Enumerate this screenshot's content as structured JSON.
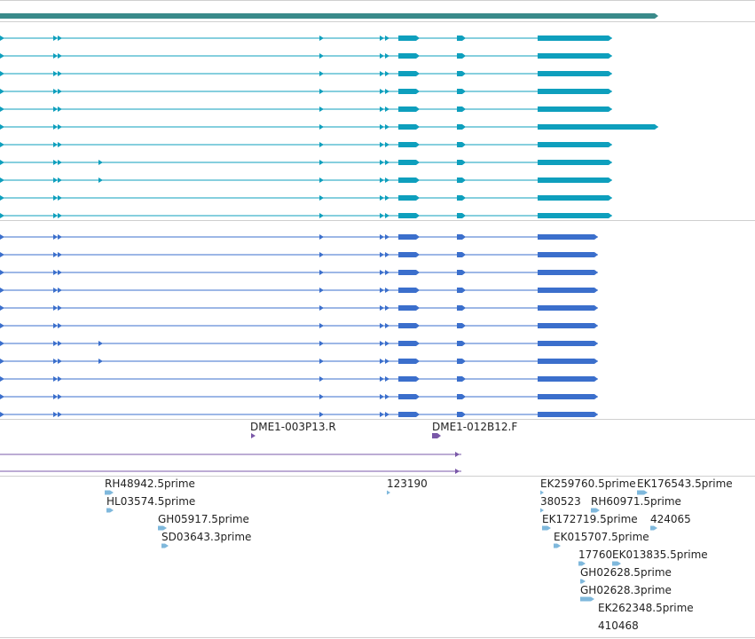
{
  "colors": {
    "gene_span": "#3a8a8a",
    "transcript": "#0e9fbd",
    "protein": "#3b6fcc",
    "primer": "#7a58a8",
    "est": "#7fb8dc",
    "divider": "#cfcfcf"
  },
  "tracks": {
    "gene": {
      "name": "gene-span-track"
    },
    "transcripts": {
      "count": 11,
      "long_variant_row": 5,
      "extra_exon_rows": [
        7,
        8
      ]
    },
    "proteins": {
      "count": 11,
      "extra_exon_rows": [
        6,
        7
      ]
    },
    "primers": {
      "labels": [
        "DME1-003P13.R",
        "DME1-012B12.F"
      ]
    },
    "ests": {
      "labels": [
        "RH48942.5prime",
        "HL03574.5prime",
        "GH05917.5prime",
        "SD03643.3prime",
        "123190",
        "EK259760.5prime",
        "EK176543.5prime",
        "380523",
        "RH60971.5prime",
        "EK172719.5prime",
        "424065",
        "EK015707.5prime",
        "17760",
        "EK013835.5prime",
        "GH02628.5prime",
        "GH02628.3prime",
        "EK262348.5prime",
        "410468"
      ]
    }
  }
}
